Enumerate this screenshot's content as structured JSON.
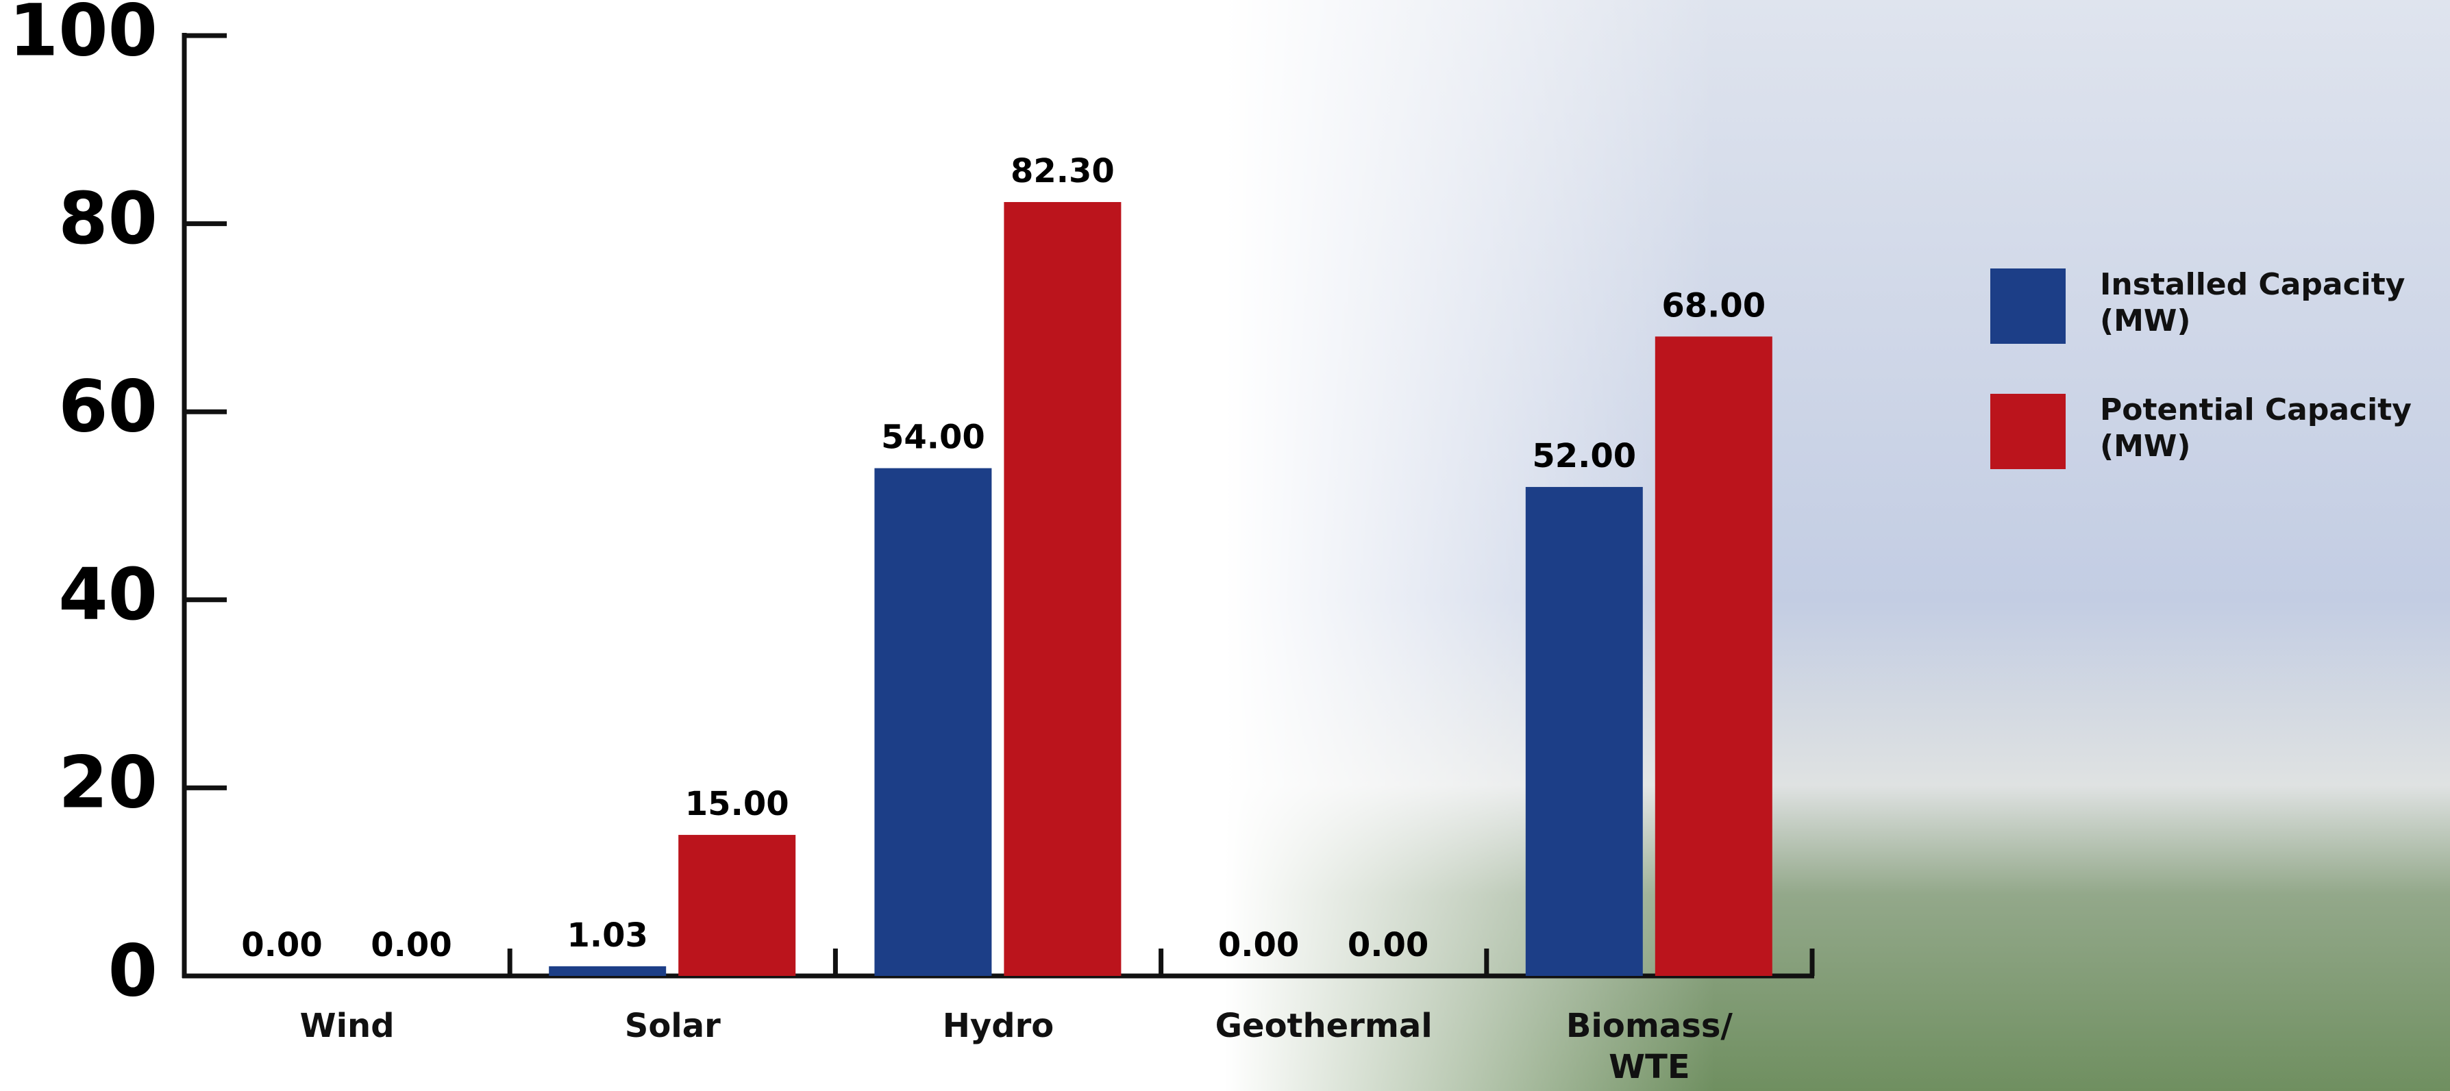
{
  "chart_data": {
    "type": "bar",
    "categories": [
      "Wind",
      "Solar",
      "Hydro",
      "Geothermal",
      "Biomass/\nWTE"
    ],
    "series": [
      {
        "name": "Installed Capacity (MW)",
        "color": "#1c3e87",
        "values": [
          0,
          1.03,
          54,
          0,
          52
        ],
        "value_labels": [
          "0.00",
          "1.03",
          "54.00",
          "0.00",
          "52.00"
        ]
      },
      {
        "name": "Potential Capacity (MW)",
        "color": "#bb141c",
        "values": [
          0,
          15,
          82.3,
          0,
          68
        ],
        "value_labels": [
          "0.00",
          "15.00",
          "82.30",
          "0.00",
          "68.00"
        ]
      }
    ],
    "ylim": [
      0,
      100
    ],
    "yticks": [
      0,
      20,
      40,
      60,
      80,
      100
    ],
    "grid": false
  }
}
